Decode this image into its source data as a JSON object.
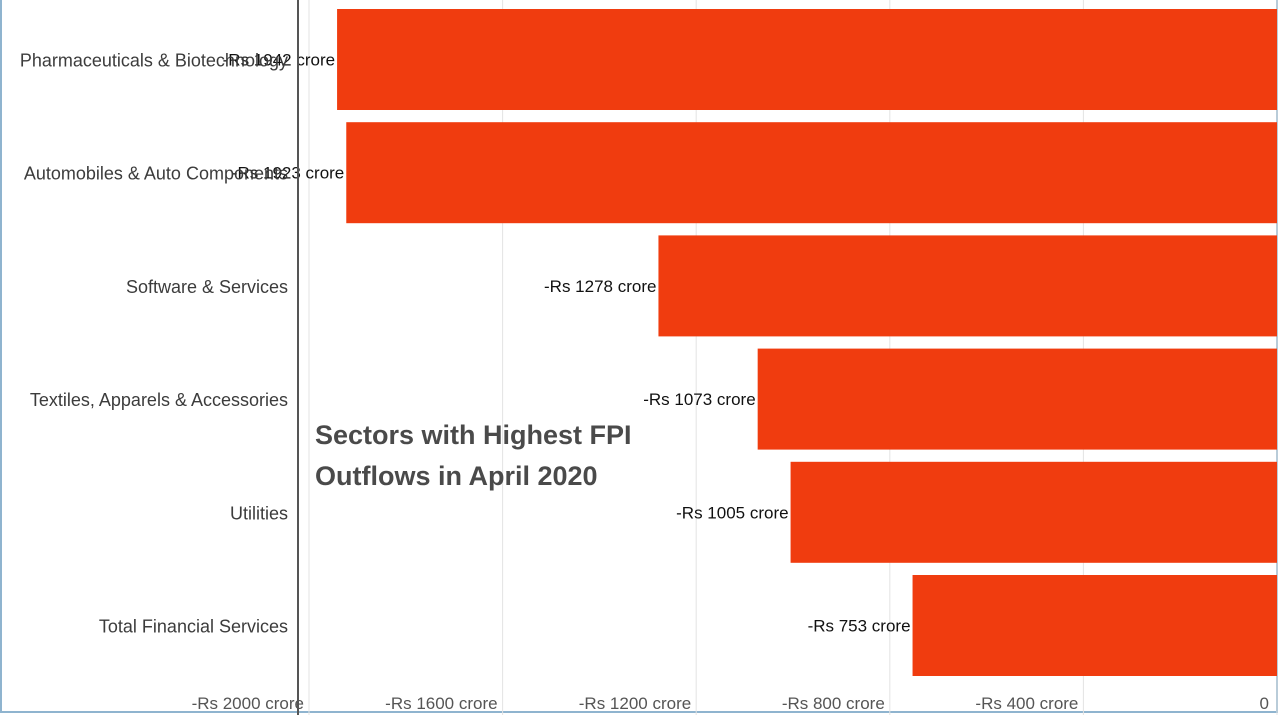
{
  "chart_data": {
    "type": "bar",
    "orientation": "horizontal",
    "title": "Sectors with Highest FPI Outflows in April 2020",
    "title_lines": [
      "Sectors with Highest FPI",
      "Outflows in April 2020"
    ],
    "categories": [
      "Pharmaceuticals & Biotechnology",
      "Automobiles & Auto Components",
      "Software & Services",
      "Textiles, Apparels & Accessories",
      "Utilities",
      "Total Financial Services"
    ],
    "values": [
      -1942,
      -1923,
      -1278,
      -1073,
      -1005,
      -753
    ],
    "data_labels": [
      "-Rs 1942 crore",
      "-Rs 1923 crore",
      "-Rs 1278 crore",
      "-Rs 1073 crore",
      "-Rs 1005 crore",
      "-Rs 753 crore"
    ],
    "xlim": [
      -2000,
      0
    ],
    "xticks": [
      -2000,
      -1600,
      -1200,
      -800,
      -400,
      0
    ],
    "xtick_labels": [
      "-Rs 2000 crore",
      "-Rs 1600 crore",
      "-Rs 1200 crore",
      "-Rs 800 crore",
      "-Rs 400 crore",
      "0"
    ],
    "xlabel": "",
    "ylabel": "",
    "unit": "Rs crore",
    "grid": true,
    "legend": "none",
    "bar_color": "#f03c0f"
  }
}
